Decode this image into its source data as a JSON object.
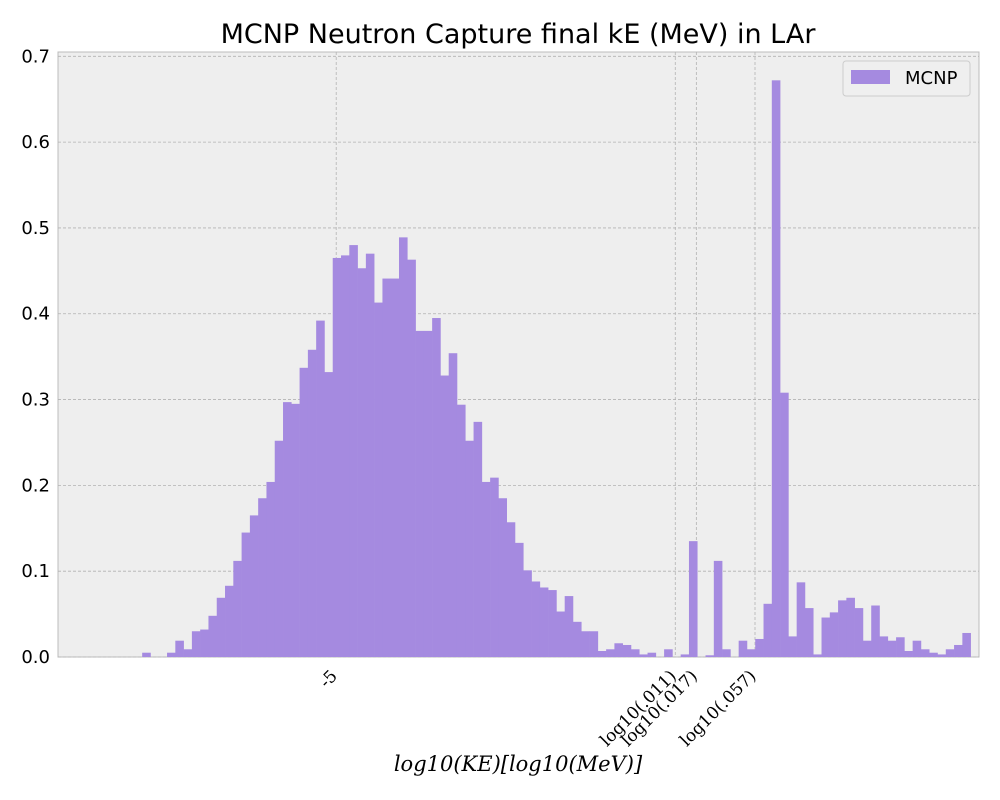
{
  "chart_data": {
    "type": "bar",
    "title": "MCNP Neutron Capture final kE (MeV) in LAr",
    "xlabel": "log10(KE)[log10(MeV)]",
    "ylabel": "",
    "ylim": [
      0,
      0.705
    ],
    "yticks": [
      "0.0",
      "0.1",
      "0.2",
      "0.3",
      "0.4",
      "0.5",
      "0.6",
      "0.7"
    ],
    "xticks": [
      {
        "label": "-5",
        "x": -5
      },
      {
        "label": "log10(.011)",
        "x": -1.959
      },
      {
        "label": "log10(.017)",
        "x": -1.77
      },
      {
        "label": "log10(.057)",
        "x": -1.244
      }
    ],
    "xlim": [
      -7.495,
      0.765
    ],
    "bins": {
      "start": -6.74,
      "width": 0.0743
    },
    "grid": true,
    "legend": {
      "position": "top-right",
      "entries": [
        "MCNP"
      ]
    },
    "series": [
      {
        "name": "MCNP",
        "color": "#a58ae0",
        "values": [
          0.005,
          0.0,
          0.0,
          0.005,
          0.019,
          0.009,
          0.03,
          0.032,
          0.048,
          0.069,
          0.083,
          0.112,
          0.145,
          0.165,
          0.185,
          0.204,
          0.252,
          0.297,
          0.295,
          0.337,
          0.358,
          0.392,
          0.332,
          0.465,
          0.468,
          0.48,
          0.453,
          0.47,
          0.413,
          0.441,
          0.441,
          0.489,
          0.463,
          0.38,
          0.38,
          0.395,
          0.328,
          0.354,
          0.294,
          0.252,
          0.274,
          0.204,
          0.209,
          0.185,
          0.157,
          0.133,
          0.101,
          0.088,
          0.081,
          0.078,
          0.053,
          0.071,
          0.041,
          0.03,
          0.03,
          0.007,
          0.009,
          0.016,
          0.014,
          0.009,
          0.003,
          0.005,
          0.0,
          0.009,
          0.0,
          0.003,
          0.135,
          0.0,
          0.002,
          0.112,
          0.009,
          0.0,
          0.019,
          0.009,
          0.021,
          0.062,
          0.672,
          0.308,
          0.024,
          0.087,
          0.057,
          0.003,
          0.046,
          0.052,
          0.066,
          0.069,
          0.057,
          0.019,
          0.06,
          0.024,
          0.019,
          0.023,
          0.007,
          0.019,
          0.009,
          0.005,
          0.003,
          0.009,
          0.014,
          0.028
        ]
      }
    ]
  }
}
